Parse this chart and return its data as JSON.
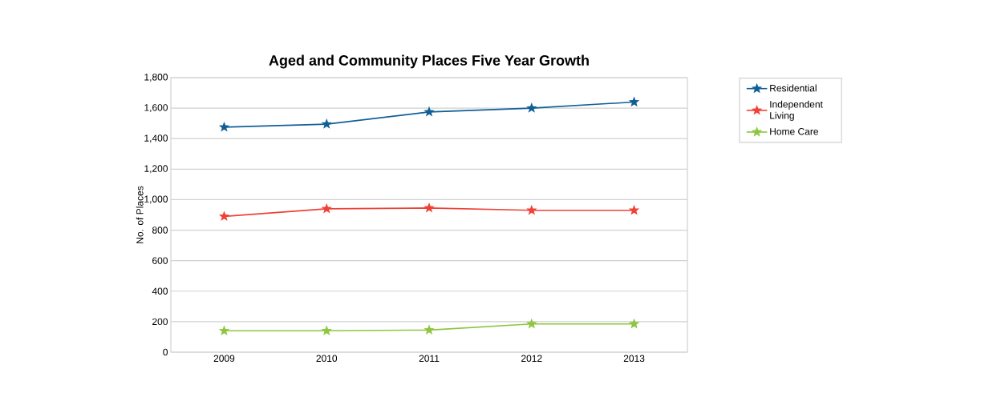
{
  "chart_data": {
    "type": "line",
    "title": "Aged and Community Places Five Year Growth",
    "ylabel": "No. of Places",
    "categories": [
      "2009",
      "2010",
      "2011",
      "2012",
      "2013"
    ],
    "series": [
      {
        "name": "Residential",
        "color": "#0f5f97",
        "values": [
          1475,
          1495,
          1575,
          1600,
          1640
        ]
      },
      {
        "name": "Independent Living",
        "color": "#ef4136",
        "values": [
          890,
          940,
          945,
          930,
          930
        ]
      },
      {
        "name": "Home Care",
        "color": "#8dc63f",
        "values": [
          140,
          140,
          145,
          185,
          185
        ]
      }
    ],
    "ylim": [
      0,
      1800
    ],
    "yticks": [
      {
        "value": 0,
        "label": "0"
      },
      {
        "value": 200,
        "label": "200"
      },
      {
        "value": 400,
        "label": "400"
      },
      {
        "value": 600,
        "label": "600"
      },
      {
        "value": 800,
        "label": "800"
      },
      {
        "value": 1000,
        "label": "1,000"
      },
      {
        "value": 1200,
        "label": "1,200"
      },
      {
        "value": 1400,
        "label": "1,400"
      },
      {
        "value": 1600,
        "label": "1,600"
      },
      {
        "value": 1800,
        "label": "1,800"
      }
    ],
    "grid": "y",
    "legend": "right",
    "marker": "star",
    "line_style": "solid"
  }
}
